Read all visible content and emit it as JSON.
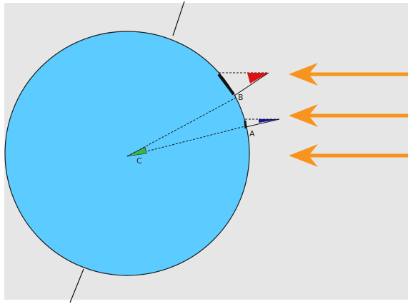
{
  "labels": {
    "point_a": "A",
    "point_b": "B",
    "point_c": "C"
  },
  "colors": {
    "background": "#e6e6e6",
    "sphere_fill": "#5ccbff",
    "sphere_stroke": "#1a1a1a",
    "sun_rays": "#f7941d",
    "shadow_angle_b": "#dd1111",
    "shadow_angle_a": "#14148c",
    "center_angle": "#3cb44b",
    "lines": "#111111"
  },
  "icons": {
    "sun_ray_arrow": "arrow-left-icon"
  }
}
